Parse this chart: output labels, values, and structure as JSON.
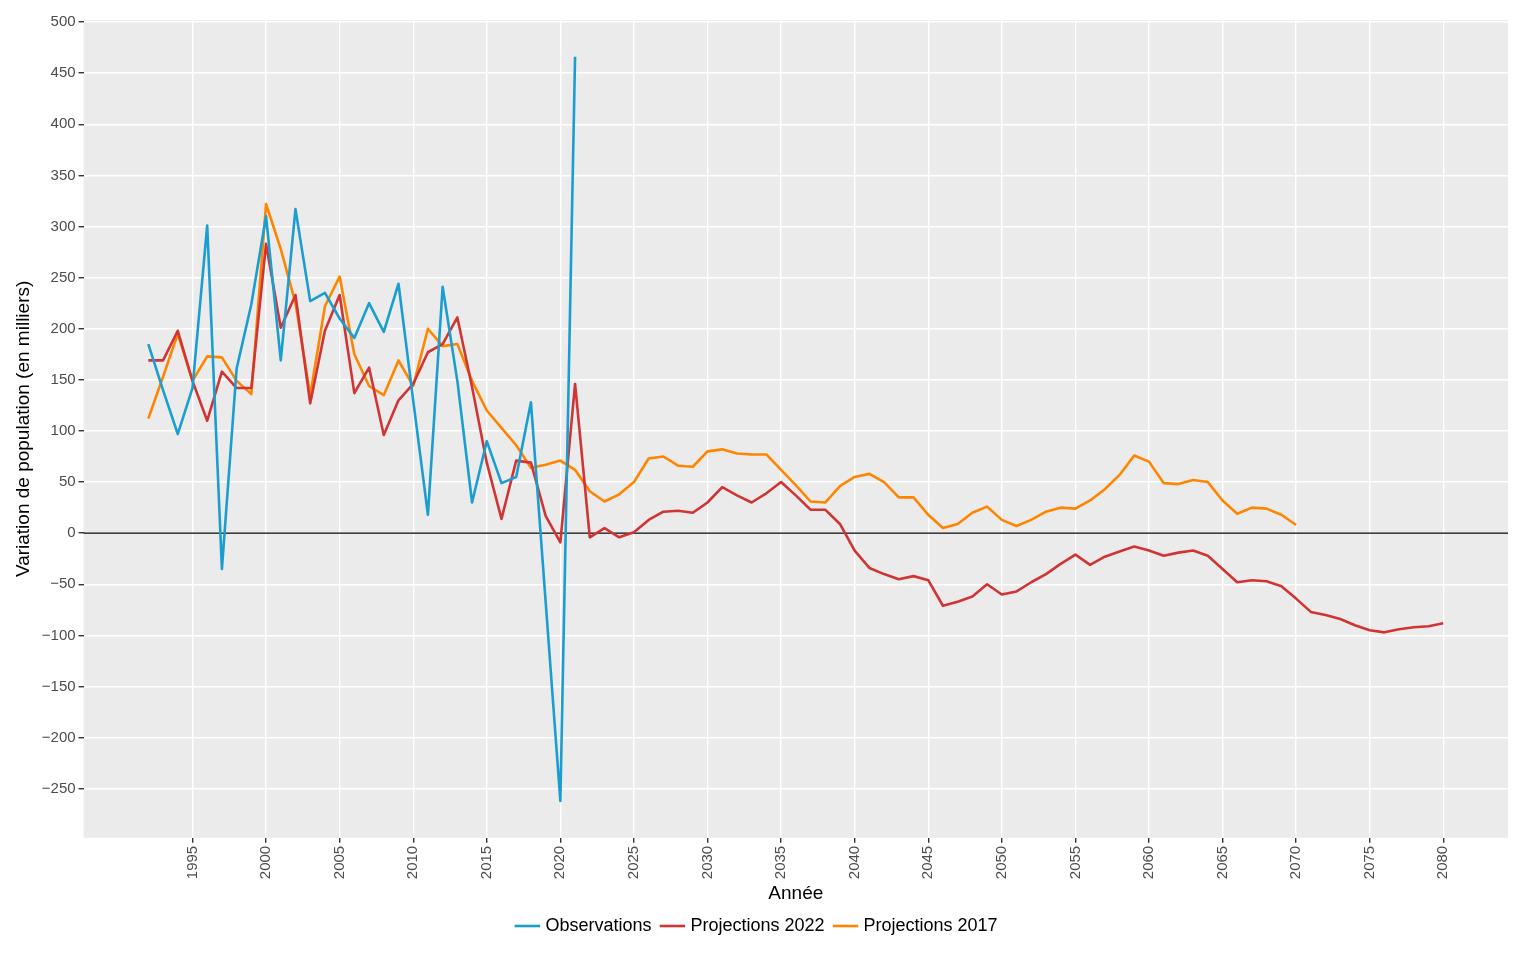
{
  "chart_data": {
    "type": "line",
    "xlabel": "Année",
    "ylabel": "Variation de population (en milliers)",
    "legend": "bottom",
    "grid": true,
    "marker": "none",
    "line_style": "solid",
    "xlim": [
      1987.6,
      2084.4
    ],
    "xticks": [
      1995,
      2000,
      2005,
      2010,
      2015,
      2020,
      2025,
      2030,
      2035,
      2040,
      2045,
      2050,
      2055,
      2060,
      2065,
      2070,
      2075,
      2080
    ],
    "ylim": [
      -298,
      502
    ],
    "yticks": [
      {
        "value": -250,
        "label": "−250"
      },
      {
        "value": -200,
        "label": "−200"
      },
      {
        "value": -150,
        "label": "−150"
      },
      {
        "value": -100,
        "label": "−100"
      },
      {
        "value": -50,
        "label": "−50"
      },
      0,
      50,
      100,
      150,
      200,
      250,
      300,
      350,
      400,
      450,
      500
    ],
    "ref_lines": [
      {
        "axis": "y",
        "value": 0,
        "color": "#000000"
      }
    ],
    "series": [
      {
        "name": "Observations",
        "color": "#1a9ecf",
        "x": [
          1992,
          1993,
          1994,
          1995,
          1996,
          1997,
          1998,
          1999,
          2000,
          2001,
          2002,
          2003,
          2004,
          2005,
          2006,
          2007,
          2008,
          2009,
          2010,
          2011,
          2012,
          2013,
          2014,
          2015,
          2016,
          2017,
          2018,
          2019,
          2020,
          2021
        ],
        "values": [
          185,
          140,
          97,
          142,
          301,
          -35,
          161,
          224,
          310,
          169,
          317,
          227,
          235,
          210,
          191,
          225,
          197,
          244,
          130,
          18,
          241,
          149,
          30,
          90,
          49,
          55,
          128,
          -67,
          -262,
          466
        ]
      },
      {
        "name": "Projections 2022",
        "color": "#d13434",
        "x": [
          1992,
          1993,
          1994,
          1995,
          1996,
          1997,
          1998,
          1999,
          2000,
          2001,
          2002,
          2003,
          2004,
          2005,
          2006,
          2007,
          2008,
          2009,
          2010,
          2011,
          2012,
          2013,
          2014,
          2015,
          2016,
          2017,
          2018,
          2019,
          2020,
          2021,
          2022,
          2023,
          2024,
          2025,
          2026,
          2027,
          2028,
          2029,
          2030,
          2031,
          2032,
          2033,
          2034,
          2035,
          2036,
          2037,
          2038,
          2039,
          2040,
          2041,
          2042,
          2043,
          2044,
          2045,
          2046,
          2047,
          2048,
          2049,
          2050,
          2051,
          2052,
          2053,
          2054,
          2055,
          2056,
          2057,
          2058,
          2059,
          2060,
          2061,
          2062,
          2063,
          2064,
          2065,
          2066,
          2067,
          2068,
          2069,
          2070,
          2071,
          2072,
          2073,
          2074,
          2075,
          2076,
          2077,
          2078,
          2079,
          2080
        ],
        "values": [
          169,
          169,
          198,
          149,
          110,
          158,
          142,
          142,
          283,
          201,
          233,
          127,
          198,
          233,
          137,
          162,
          96,
          130,
          146,
          177,
          185,
          211,
          143,
          69,
          14,
          71,
          69,
          17,
          -9,
          146,
          -4,
          5,
          -4,
          1,
          13,
          21,
          22,
          20,
          30,
          45,
          37,
          30,
          39,
          50,
          37,
          23,
          23,
          9,
          -17,
          -34,
          -40,
          -45,
          -42,
          -46,
          -71,
          -67,
          -62,
          -50,
          -60,
          -57,
          -48,
          -40,
          -30,
          -21,
          -31,
          -23,
          -18,
          -13,
          -17,
          -22,
          -19,
          -17,
          -22,
          -35,
          -48,
          -46,
          -47,
          -52,
          -64,
          -77,
          -80,
          -84,
          -90,
          -95,
          -97,
          -94,
          -92,
          -91,
          -88
        ]
      },
      {
        "name": "Projections 2017",
        "color": "#ff8500",
        "x": [
          1992,
          1993,
          1994,
          1995,
          1996,
          1997,
          1998,
          1999,
          2000,
          2001,
          2002,
          2003,
          2004,
          2005,
          2006,
          2007,
          2008,
          2009,
          2010,
          2011,
          2012,
          2013,
          2014,
          2015,
          2016,
          2017,
          2018,
          2019,
          2020,
          2021,
          2022,
          2023,
          2024,
          2025,
          2026,
          2027,
          2028,
          2029,
          2030,
          2031,
          2032,
          2033,
          2034,
          2035,
          2036,
          2037,
          2038,
          2039,
          2040,
          2041,
          2042,
          2043,
          2044,
          2045,
          2046,
          2047,
          2048,
          2049,
          2050,
          2051,
          2052,
          2053,
          2054,
          2055,
          2056,
          2057,
          2058,
          2059,
          2060,
          2061,
          2062,
          2063,
          2064,
          2065,
          2066,
          2067,
          2068,
          2069,
          2070
        ],
        "values": [
          112,
          153,
          195,
          149,
          173,
          172,
          149,
          136,
          322,
          278,
          225,
          135,
          222,
          251,
          175,
          144,
          135,
          169,
          144,
          200,
          183,
          185,
          149,
          120,
          103,
          86,
          64,
          67,
          71,
          62,
          41,
          31,
          38,
          50,
          73,
          75,
          66,
          65,
          80,
          82,
          78,
          77,
          77,
          62,
          47,
          31,
          30,
          46,
          55,
          58,
          50,
          35,
          35,
          18,
          5,
          9,
          20,
          26,
          13,
          7,
          13,
          21,
          25,
          24,
          32,
          43,
          57,
          76,
          70,
          49,
          48,
          52,
          50,
          32,
          19,
          25,
          24,
          18,
          8
        ]
      }
    ]
  }
}
